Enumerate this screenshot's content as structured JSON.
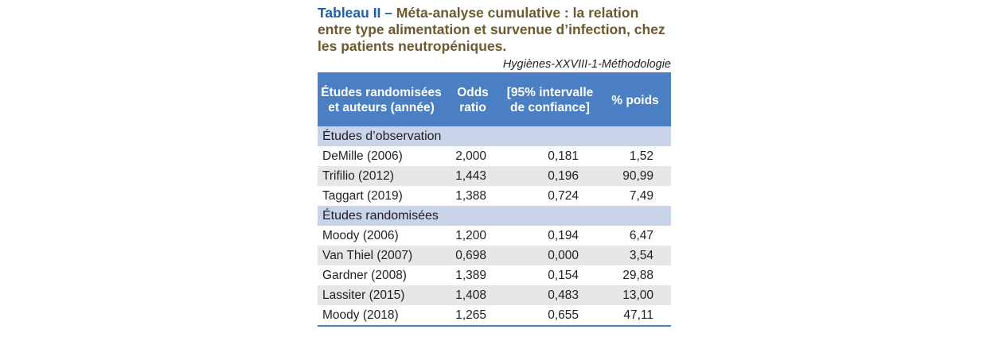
{
  "title": {
    "lead": "Tableau II –",
    "text": " Méta-analyse cumulative : la relation entre type alimentation et survenue d’infection, chez les patients neutropéniques."
  },
  "source": "Hygiènes-XXVIII-1-Méthodologie",
  "table": {
    "headers": [
      "Études randomisées et auteurs (année)",
      "Odds ratio",
      "[95% intervalle de confiance]",
      "% poids"
    ],
    "groups": [
      {
        "label": "Études d’observation",
        "rows": [
          {
            "study": "DeMille (2006)",
            "or": "2,000",
            "ci": "0,181",
            "weight": "1,52"
          },
          {
            "study": "Trifilio (2012)",
            "or": "1,443",
            "ci": "0,196",
            "weight": "90,99"
          },
          {
            "study": "Taggart (2019)",
            "or": "1,388",
            "ci": "0,724",
            "weight": "7,49"
          }
        ]
      },
      {
        "label": "Études randomisées",
        "rows": [
          {
            "study": "Moody (2006)",
            "or": "1,200",
            "ci": "0,194",
            "weight": "6,47"
          },
          {
            "study": "Van Thiel (2007)",
            "or": "0,698",
            "ci": "0,000",
            "weight": "3,54"
          },
          {
            "study": "Gardner (2008)",
            "or": "1,389",
            "ci": "0,154",
            "weight": "29,88"
          },
          {
            "study": "Lassiter (2015)",
            "or": "1,408",
            "ci": "0,483",
            "weight": "13,00"
          },
          {
            "study": "Moody (2018)",
            "or": "1,265",
            "ci": "0,655",
            "weight": "47,11"
          }
        ]
      }
    ]
  }
}
